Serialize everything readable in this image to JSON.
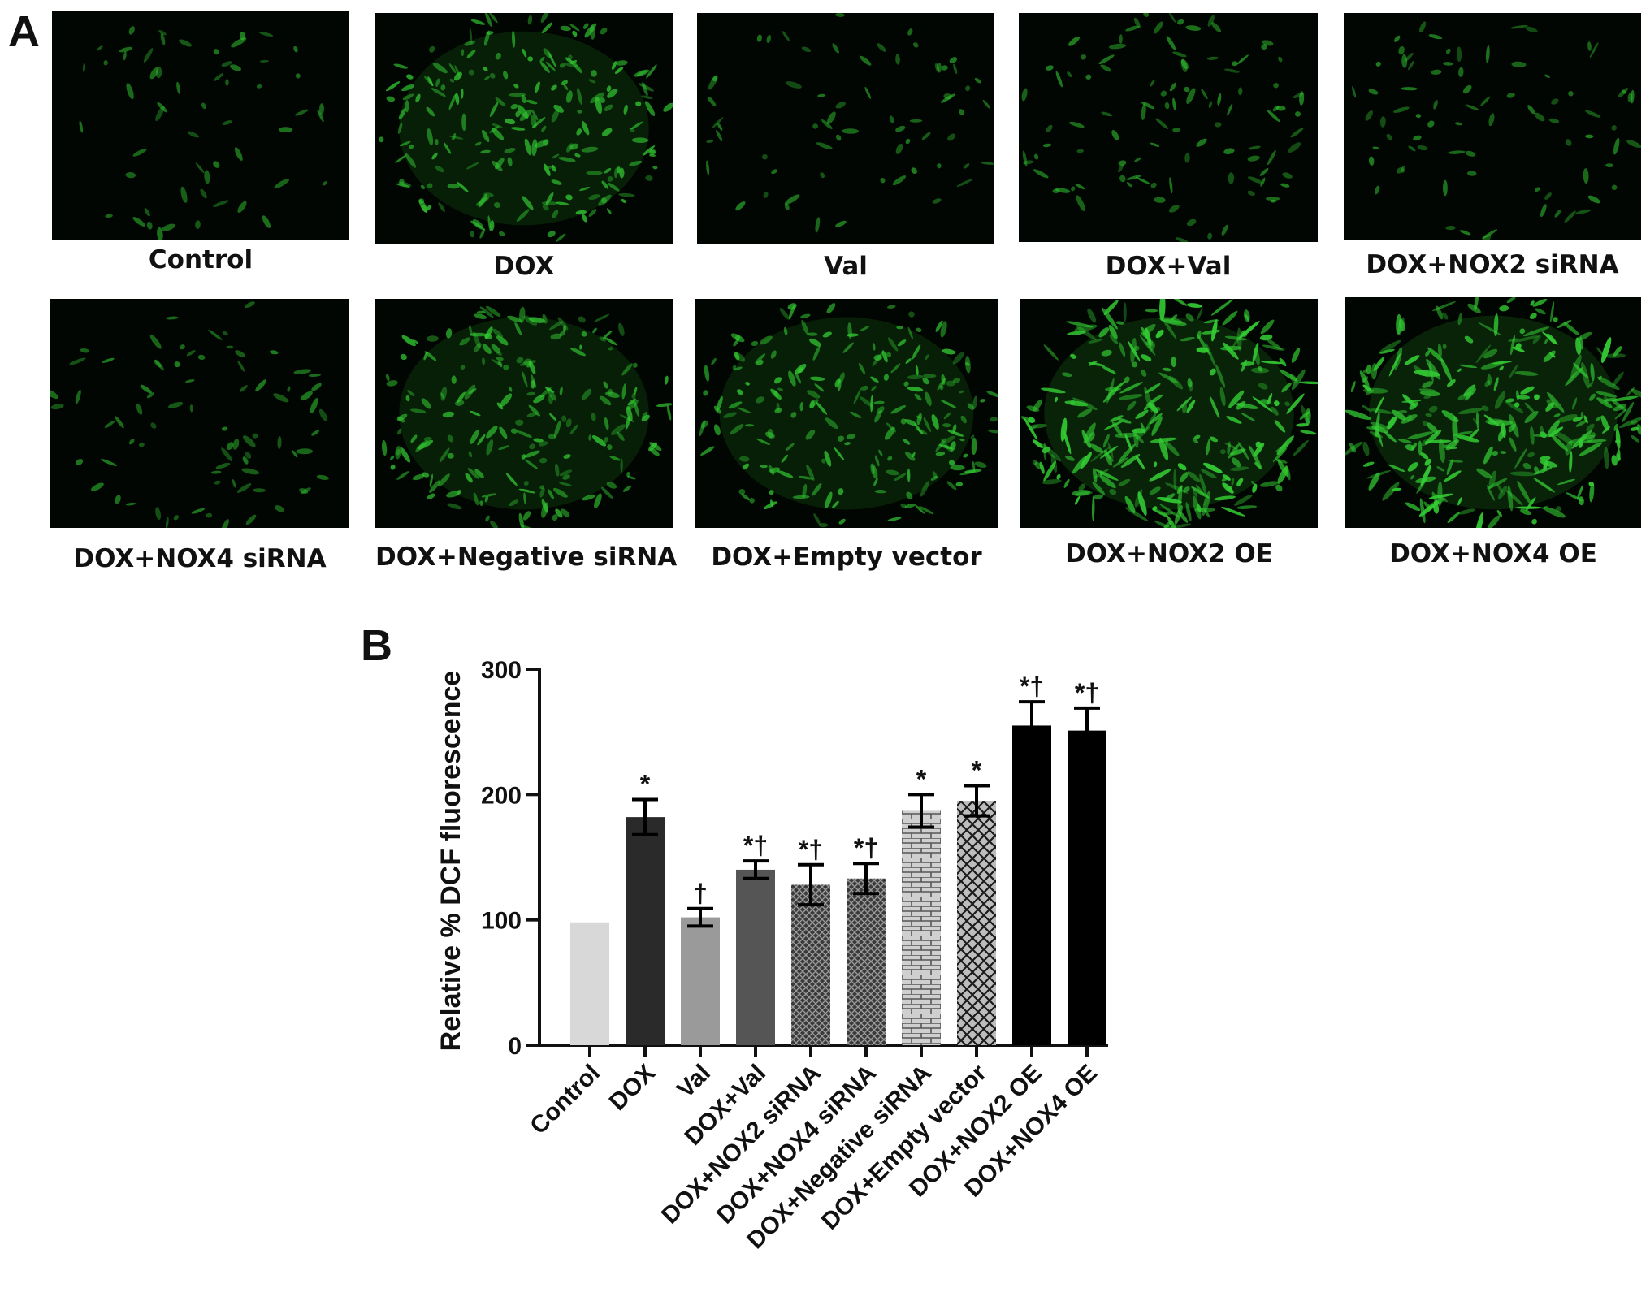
{
  "panel_a_label": "A",
  "panel_b_label": "B",
  "micrographs": [
    {
      "label": "Control",
      "density": 0.12
    },
    {
      "label": "DOX",
      "density": 0.72
    },
    {
      "label": "Val",
      "density": 0.15
    },
    {
      "label": "DOX+Val",
      "density": 0.3
    },
    {
      "label": "DOX+NOX2 siRNA",
      "density": 0.2
    },
    {
      "label": "DOX+NOX4 siRNA",
      "density": 0.2
    },
    {
      "label": "DOX+Negative siRNA",
      "density": 0.7
    },
    {
      "label": "DOX+Empty vector",
      "density": 0.72
    },
    {
      "label": "DOX+NOX2 OE",
      "density": 1.0
    },
    {
      "label": "DOX+NOX4 OE",
      "density": 1.0
    }
  ],
  "colors": {
    "fluorescence": "#33cc33",
    "micrograph_background": "#020602"
  },
  "chart_data": {
    "type": "bar",
    "ylabel": "Relative % DCF fluorescence",
    "ylim": [
      0,
      300
    ],
    "yticks": [
      0,
      100,
      200,
      300
    ],
    "categories": [
      "Control",
      "DOX",
      "Val",
      "DOX+Val",
      "DOX+NOX2 siRNA",
      "DOX+NOX4 siRNA",
      "DOX+Negative siRNA",
      "DOX+Empty vector",
      "DOX+NOX2 OE",
      "DOX+NOX4 OE"
    ],
    "values": [
      98,
      182,
      102,
      140,
      128,
      133,
      187,
      195,
      255,
      251
    ],
    "errors": [
      0,
      14,
      7,
      7,
      16,
      12,
      13,
      12,
      19,
      18
    ],
    "annotations": [
      "",
      "*",
      "†",
      "*†",
      "*†",
      "*†",
      "*",
      "*",
      "*†",
      "*†"
    ],
    "bar_styles": [
      {
        "fill": "#d8d8d8",
        "pattern": "solid"
      },
      {
        "fill": "#2a2a2a",
        "pattern": "solid"
      },
      {
        "fill": "#9a9a9a",
        "pattern": "solid"
      },
      {
        "fill": "#555555",
        "pattern": "solid"
      },
      {
        "fill": "#3a3a3a",
        "pattern": "fine-check"
      },
      {
        "fill": "#3a3a3a",
        "pattern": "fine-check"
      },
      {
        "fill": "#cfcfcf",
        "pattern": "brick"
      },
      {
        "fill": "#bdbdbd",
        "pattern": "crosshatch"
      },
      {
        "fill": "#000000",
        "pattern": "solid"
      },
      {
        "fill": "#000000",
        "pattern": "solid"
      }
    ]
  }
}
